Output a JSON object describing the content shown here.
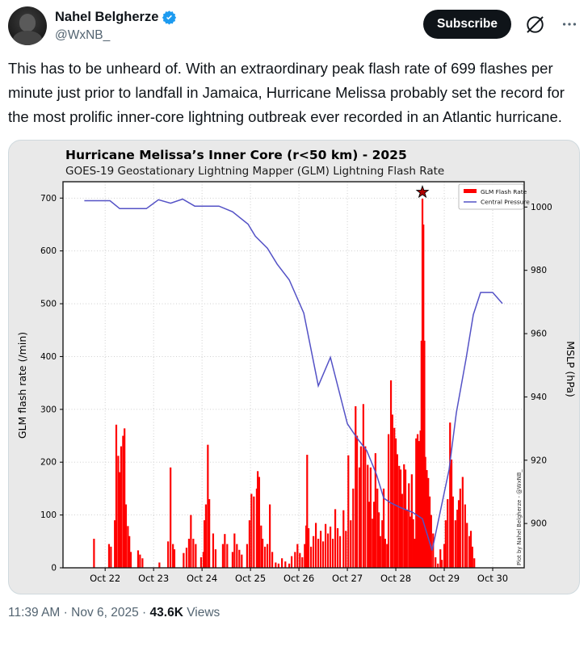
{
  "header": {
    "name": "Nahel Belgherze",
    "handle": "@WxNB_",
    "subscribe_label": "Subscribe"
  },
  "tweet": {
    "text": "This has to be unheard of. With an extraordinary peak flash rate of 699 flashes per minute just prior to landfall in Jamaica, Hurricane Melissa probably set the record for the most prolific inner-core lightning outbreak ever recorded in an Atlantic hurricane."
  },
  "footer": {
    "time": "11:39 AM",
    "sep1": "·",
    "date": "Nov 6, 2025",
    "sep2": "·",
    "views_count": "43.6K",
    "views_label": "Views"
  },
  "colors": {
    "accent_blue": "#1d9bf0",
    "bar_red": "#fe0000",
    "pressure_line": "#5452c6",
    "star_fill": "#b00000",
    "fig_bg": "#e9e9e9",
    "grid": "#c9c9c9",
    "text_gray": "#536471"
  },
  "chart_data": {
    "type": "bar",
    "title": "Hurricane Melissa’s Inner Core (r<50 km) - 2025",
    "subtitle": "GOES-19 Geostationary Lightning Mapper (GLM) Lightning Flash Rate",
    "ylabel_left": "GLM flash rate (/min)",
    "ylabel_right": "MSLP (hPa)",
    "watermark": "Plot by Nahel Belgherze - @WxNB_",
    "legend": [
      {
        "label": "GLM Flash Rate",
        "color": "#fe0000",
        "type": "bar"
      },
      {
        "label": "Central Pressure",
        "color": "#5452c6",
        "type": "line"
      }
    ],
    "x_axis_note": "x values are October 2025 day-of-month (fractional days)",
    "x_domain": [
      21.13,
      30.65
    ],
    "xticks": [
      {
        "day": 22,
        "label": "Oct 22"
      },
      {
        "day": 23,
        "label": "Oct 23"
      },
      {
        "day": 24,
        "label": "Oct 24"
      },
      {
        "day": 25,
        "label": "Oct 25"
      },
      {
        "day": 26,
        "label": "Oct 26"
      },
      {
        "day": 27,
        "label": "Oct 27"
      },
      {
        "day": 28,
        "label": "Oct 28"
      },
      {
        "day": 29,
        "label": "Oct 29"
      },
      {
        "day": 30,
        "label": "Oct 30"
      }
    ],
    "yleft": {
      "min": 0,
      "max": 731,
      "ticks": [
        0,
        100,
        200,
        300,
        400,
        500,
        600,
        700
      ]
    },
    "yright": {
      "min": 886,
      "max": 1008,
      "ticks": [
        900,
        920,
        940,
        960,
        980,
        1000
      ]
    },
    "peak_annotation": {
      "day": 28.55,
      "value": 699,
      "marker": "star"
    },
    "bars": [
      [
        21.77,
        55
      ],
      [
        22.08,
        45
      ],
      [
        22.12,
        40
      ],
      [
        22.2,
        90
      ],
      [
        22.23,
        271
      ],
      [
        22.27,
        212
      ],
      [
        22.3,
        181
      ],
      [
        22.33,
        230
      ],
      [
        22.37,
        250
      ],
      [
        22.4,
        264
      ],
      [
        22.43,
        120
      ],
      [
        22.47,
        79
      ],
      [
        22.5,
        60
      ],
      [
        22.53,
        30
      ],
      [
        22.68,
        33
      ],
      [
        22.72,
        25
      ],
      [
        22.77,
        18
      ],
      [
        23.12,
        10
      ],
      [
        23.3,
        50
      ],
      [
        23.35,
        190
      ],
      [
        23.4,
        45
      ],
      [
        23.43,
        35
      ],
      [
        23.62,
        28
      ],
      [
        23.68,
        38
      ],
      [
        23.73,
        55
      ],
      [
        23.77,
        100
      ],
      [
        23.82,
        55
      ],
      [
        23.87,
        45
      ],
      [
        23.98,
        20
      ],
      [
        24.03,
        30
      ],
      [
        24.05,
        90
      ],
      [
        24.08,
        120
      ],
      [
        24.12,
        233
      ],
      [
        24.15,
        130
      ],
      [
        24.23,
        65
      ],
      [
        24.28,
        35
      ],
      [
        24.43,
        45
      ],
      [
        24.47,
        64
      ],
      [
        24.52,
        45
      ],
      [
        24.63,
        30
      ],
      [
        24.67,
        65
      ],
      [
        24.72,
        45
      ],
      [
        24.77,
        34
      ],
      [
        24.82,
        25
      ],
      [
        24.93,
        45
      ],
      [
        24.98,
        90
      ],
      [
        25.02,
        140
      ],
      [
        25.07,
        135
      ],
      [
        25.13,
        150
      ],
      [
        25.15,
        183
      ],
      [
        25.18,
        172
      ],
      [
        25.22,
        80
      ],
      [
        25.25,
        55
      ],
      [
        25.3,
        40
      ],
      [
        25.35,
        45
      ],
      [
        25.4,
        120
      ],
      [
        25.45,
        30
      ],
      [
        25.52,
        10
      ],
      [
        25.58,
        8
      ],
      [
        25.65,
        18
      ],
      [
        25.72,
        12
      ],
      [
        25.8,
        8
      ],
      [
        25.85,
        22
      ],
      [
        25.92,
        30
      ],
      [
        25.97,
        45
      ],
      [
        26.02,
        28
      ],
      [
        26.07,
        20
      ],
      [
        26.12,
        45
      ],
      [
        26.15,
        80
      ],
      [
        26.17,
        214
      ],
      [
        26.2,
        75
      ],
      [
        26.25,
        40
      ],
      [
        26.3,
        60
      ],
      [
        26.35,
        85
      ],
      [
        26.4,
        55
      ],
      [
        26.45,
        70
      ],
      [
        26.5,
        50
      ],
      [
        26.55,
        83
      ],
      [
        26.6,
        65
      ],
      [
        26.65,
        78
      ],
      [
        26.7,
        55
      ],
      [
        26.75,
        111
      ],
      [
        26.8,
        75
      ],
      [
        26.85,
        60
      ],
      [
        26.92,
        109
      ],
      [
        26.97,
        70
      ],
      [
        27.02,
        213
      ],
      [
        27.07,
        90
      ],
      [
        27.12,
        150
      ],
      [
        27.17,
        306
      ],
      [
        27.2,
        250
      ],
      [
        27.25,
        190
      ],
      [
        27.28,
        230
      ],
      [
        27.33,
        310
      ],
      [
        27.37,
        230
      ],
      [
        27.42,
        195
      ],
      [
        27.45,
        125
      ],
      [
        27.48,
        190
      ],
      [
        27.52,
        93
      ],
      [
        27.55,
        125
      ],
      [
        27.58,
        217
      ],
      [
        27.62,
        150
      ],
      [
        27.65,
        105
      ],
      [
        27.68,
        60
      ],
      [
        27.72,
        90
      ],
      [
        27.75,
        150
      ],
      [
        27.78,
        55
      ],
      [
        27.82,
        45
      ],
      [
        27.85,
        253
      ],
      [
        27.9,
        355
      ],
      [
        27.93,
        290
      ],
      [
        27.97,
        265
      ],
      [
        28.0,
        245
      ],
      [
        28.03,
        215
      ],
      [
        28.07,
        193
      ],
      [
        28.1,
        186
      ],
      [
        28.13,
        140
      ],
      [
        28.17,
        196
      ],
      [
        28.2,
        186
      ],
      [
        28.23,
        110
      ],
      [
        28.27,
        160
      ],
      [
        28.3,
        97
      ],
      [
        28.33,
        177
      ],
      [
        28.36,
        92
      ],
      [
        28.39,
        55
      ],
      [
        28.42,
        245
      ],
      [
        28.45,
        253
      ],
      [
        28.48,
        240
      ],
      [
        28.51,
        260
      ],
      [
        28.53,
        430
      ],
      [
        28.55,
        699
      ],
      [
        28.57,
        650
      ],
      [
        28.59,
        430
      ],
      [
        28.61,
        210
      ],
      [
        28.64,
        185
      ],
      [
        28.67,
        170
      ],
      [
        28.7,
        135
      ],
      [
        28.73,
        100
      ],
      [
        28.77,
        65
      ],
      [
        28.82,
        20
      ],
      [
        28.87,
        8
      ],
      [
        28.92,
        35
      ],
      [
        28.95,
        15
      ],
      [
        29.0,
        45
      ],
      [
        29.03,
        90
      ],
      [
        29.07,
        130
      ],
      [
        29.12,
        275
      ],
      [
        29.15,
        205
      ],
      [
        29.18,
        135
      ],
      [
        29.23,
        90
      ],
      [
        29.27,
        110
      ],
      [
        29.3,
        128
      ],
      [
        29.33,
        150
      ],
      [
        29.38,
        172
      ],
      [
        29.43,
        120
      ],
      [
        29.47,
        85
      ],
      [
        29.52,
        60
      ],
      [
        29.55,
        70
      ],
      [
        29.58,
        40
      ],
      [
        29.62,
        18
      ]
    ],
    "pressure": [
      [
        21.57,
        1002
      ],
      [
        22.1,
        1002
      ],
      [
        22.3,
        999.5
      ],
      [
        22.85,
        999.5
      ],
      [
        23.1,
        1002.3
      ],
      [
        23.35,
        1001.2
      ],
      [
        23.6,
        1002.5
      ],
      [
        23.85,
        1000.3
      ],
      [
        24.35,
        1000.3
      ],
      [
        24.63,
        998.5
      ],
      [
        24.95,
        994.6
      ],
      [
        25.1,
        990.8
      ],
      [
        25.35,
        987
      ],
      [
        25.55,
        982
      ],
      [
        25.8,
        977
      ],
      [
        26.1,
        966.5
      ],
      [
        26.4,
        943.5
      ],
      [
        26.65,
        952.5
      ],
      [
        27.0,
        931.5
      ],
      [
        27.2,
        927
      ],
      [
        27.4,
        923
      ],
      [
        27.6,
        915.5
      ],
      [
        27.75,
        908
      ],
      [
        27.9,
        906.5
      ],
      [
        28.1,
        905
      ],
      [
        28.35,
        903.5
      ],
      [
        28.55,
        901.5
      ],
      [
        28.75,
        891.5
      ],
      [
        29.1,
        917
      ],
      [
        29.25,
        935
      ],
      [
        29.45,
        952
      ],
      [
        29.6,
        966
      ],
      [
        29.75,
        973
      ],
      [
        30.0,
        973
      ],
      [
        30.2,
        969.5
      ]
    ]
  }
}
